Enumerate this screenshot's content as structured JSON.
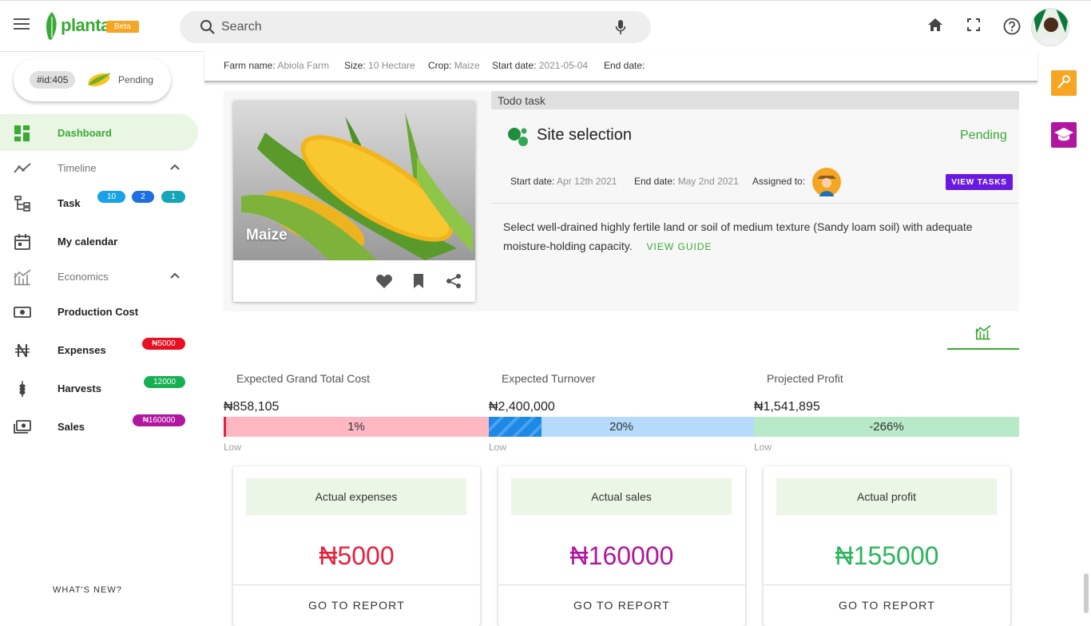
{
  "app": {
    "logo_text": "planta",
    "beta_label": "Beta"
  },
  "search": {
    "placeholder": "Search"
  },
  "crop_chip": {
    "id": "#id:405",
    "status": "Pending"
  },
  "sidebar": {
    "dashboard": "Dashboard",
    "timeline": "Timeline",
    "task": "Task",
    "task_badges": [
      "10",
      "2",
      "1"
    ],
    "calendar": "My calendar",
    "economics": "Economics",
    "production_cost": "Production Cost",
    "expenses": "Expenses",
    "expenses_badge": "₦5000",
    "harvests": "Harvests",
    "harvests_badge": "12000",
    "sales": "Sales",
    "sales_badge": "₦160000",
    "whats_new": "WHAT'S NEW?"
  },
  "farm": {
    "name_label": "Farm name:",
    "name": "Abiola Farm",
    "size_label": "Size:",
    "size": "10 Hectare",
    "crop_label": "Crop:",
    "crop": "Maize",
    "start_label": "Start date:",
    "start": "2021-05-04",
    "end_label": "End date:",
    "end": ""
  },
  "crop_card": {
    "name": "Maize"
  },
  "todo": {
    "header": "Todo task",
    "title": "Site selection",
    "status": "Pending",
    "start_label": "Start date:",
    "start": "Apr 12th 2021",
    "end_label": "End date:",
    "end": "May 2nd 2021",
    "assigned_label": "Assigned to:",
    "view_tasks": "VIEW TASKS",
    "description": "Select well-drained highly fertile land or soil of medium texture (Sandy loam soil) with adequate moisture-holding capacity.",
    "view_guide": "VIEW GUIDE"
  },
  "stats": [
    {
      "label": "Expected Grand Total Cost",
      "value": "₦858,105",
      "percent": "1%",
      "fill": 0.01,
      "low": "Low",
      "color": "#ffb7c2",
      "fill_color": "#e5213c"
    },
    {
      "label": "Expected Turnover",
      "value": "₦2,400,000",
      "percent": "20%",
      "fill": 0.2,
      "low": "Low",
      "color": "#b6dafb",
      "fill_color": "#1e88e5"
    },
    {
      "label": "Projected Profit",
      "value": "₦1,541,895",
      "percent": "-266%",
      "fill": 0,
      "low": "Low",
      "color": "#b8e9c8",
      "fill_color": "#2ab55a"
    }
  ],
  "actuals": [
    {
      "label": "Actual expenses",
      "value": "₦5000",
      "color": "#e5213c",
      "button": "GO TO REPORT"
    },
    {
      "label": "Actual sales",
      "value": "₦160000",
      "color": "#b0169f",
      "button": "GO TO REPORT"
    },
    {
      "label": "Actual profit",
      "value": "₦155000",
      "color": "#2ab55a",
      "button": "GO TO REPORT"
    }
  ],
  "colors": {
    "brand_green": "#3aa935",
    "accent_orange": "#f5a623",
    "accent_purple": "#6a1ae0"
  }
}
